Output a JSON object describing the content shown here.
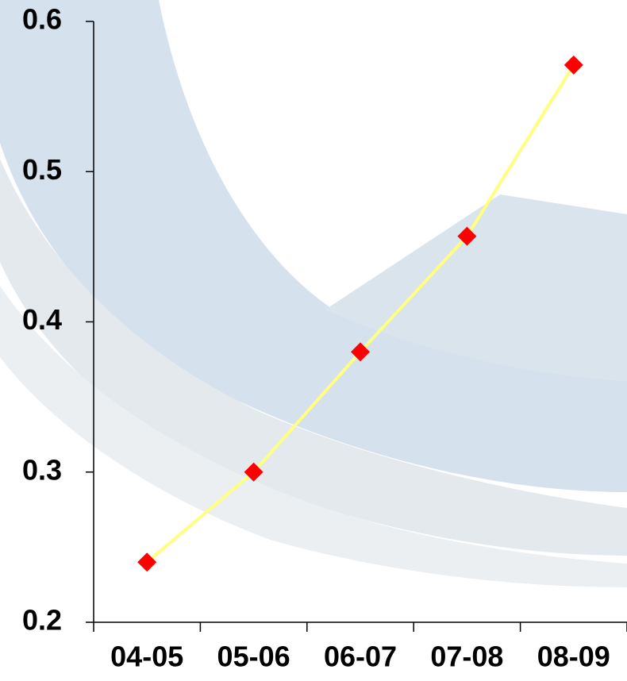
{
  "chart_data": {
    "type": "line",
    "categories": [
      "04-05",
      "05-06",
      "06-07",
      "07-08",
      "08-09"
    ],
    "series": [
      {
        "color": "#ffff80",
        "marker_color": "#ff0000",
        "values": [
          0.24,
          0.3,
          0.38,
          0.457,
          0.571
        ]
      }
    ],
    "ylim": [
      0.2,
      0.6
    ],
    "yticks": [
      0.2,
      0.3,
      0.4,
      0.5,
      0.6
    ],
    "grid": false
  }
}
